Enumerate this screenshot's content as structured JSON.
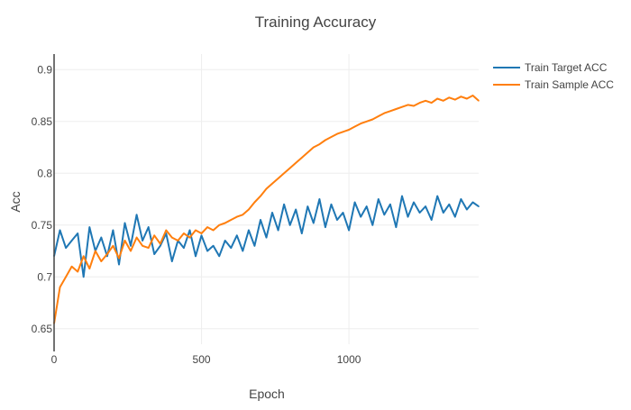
{
  "chart_data": {
    "type": "line",
    "title": "Training Accuracy",
    "xlabel": "Epoch",
    "ylabel": "Acc",
    "xlim": [
      0,
      1440
    ],
    "ylim": [
      0.635,
      0.915
    ],
    "x_ticks": [
      0,
      500,
      1000
    ],
    "x_tick_labels": [
      "0",
      "500",
      "1000"
    ],
    "y_ticks": [
      0.65,
      0.7,
      0.75,
      0.8,
      0.85,
      0.9
    ],
    "y_tick_labels": [
      "0.65",
      "0.7",
      "0.75",
      "0.8",
      "0.85",
      "0.9"
    ],
    "grid": true,
    "legend_position": "top-right outside plot",
    "series": [
      {
        "name": "Train Target ACC",
        "color": "#1f77b4",
        "x": [
          0,
          20,
          40,
          60,
          80,
          100,
          120,
          140,
          160,
          180,
          200,
          220,
          240,
          260,
          280,
          300,
          320,
          340,
          360,
          380,
          400,
          420,
          440,
          460,
          480,
          500,
          520,
          540,
          560,
          580,
          600,
          620,
          640,
          660,
          680,
          700,
          720,
          740,
          760,
          780,
          800,
          820,
          840,
          860,
          880,
          900,
          920,
          940,
          960,
          980,
          1000,
          1020,
          1040,
          1060,
          1080,
          1100,
          1120,
          1140,
          1160,
          1180,
          1200,
          1220,
          1240,
          1260,
          1280,
          1300,
          1320,
          1340,
          1360,
          1380,
          1400,
          1420,
          1440
        ],
        "values": [
          0.72,
          0.745,
          0.728,
          0.735,
          0.742,
          0.7,
          0.748,
          0.725,
          0.738,
          0.72,
          0.745,
          0.712,
          0.752,
          0.73,
          0.76,
          0.735,
          0.748,
          0.722,
          0.73,
          0.742,
          0.715,
          0.735,
          0.728,
          0.745,
          0.72,
          0.74,
          0.725,
          0.73,
          0.72,
          0.735,
          0.728,
          0.74,
          0.725,
          0.745,
          0.73,
          0.755,
          0.738,
          0.762,
          0.745,
          0.77,
          0.75,
          0.765,
          0.742,
          0.768,
          0.752,
          0.775,
          0.748,
          0.77,
          0.755,
          0.762,
          0.745,
          0.772,
          0.758,
          0.768,
          0.75,
          0.775,
          0.76,
          0.77,
          0.748,
          0.778,
          0.758,
          0.772,
          0.762,
          0.768,
          0.755,
          0.778,
          0.762,
          0.77,
          0.758,
          0.775,
          0.765,
          0.772,
          0.768
        ]
      },
      {
        "name": "Train Sample ACC",
        "color": "#ff7f0e",
        "x": [
          0,
          20,
          40,
          60,
          80,
          100,
          120,
          140,
          160,
          180,
          200,
          220,
          240,
          260,
          280,
          300,
          320,
          340,
          360,
          380,
          400,
          420,
          440,
          460,
          480,
          500,
          520,
          540,
          560,
          580,
          600,
          620,
          640,
          660,
          680,
          700,
          720,
          740,
          760,
          780,
          800,
          820,
          840,
          860,
          880,
          900,
          920,
          940,
          960,
          980,
          1000,
          1020,
          1040,
          1060,
          1080,
          1100,
          1120,
          1140,
          1160,
          1180,
          1200,
          1220,
          1240,
          1260,
          1280,
          1300,
          1320,
          1340,
          1360,
          1380,
          1400,
          1420,
          1440
        ],
        "values": [
          0.655,
          0.69,
          0.7,
          0.71,
          0.705,
          0.72,
          0.708,
          0.725,
          0.715,
          0.722,
          0.73,
          0.718,
          0.735,
          0.725,
          0.738,
          0.73,
          0.728,
          0.74,
          0.732,
          0.745,
          0.738,
          0.735,
          0.742,
          0.738,
          0.745,
          0.742,
          0.748,
          0.745,
          0.75,
          0.752,
          0.755,
          0.758,
          0.76,
          0.765,
          0.772,
          0.778,
          0.785,
          0.79,
          0.795,
          0.8,
          0.805,
          0.81,
          0.815,
          0.82,
          0.825,
          0.828,
          0.832,
          0.835,
          0.838,
          0.84,
          0.842,
          0.845,
          0.848,
          0.85,
          0.852,
          0.855,
          0.858,
          0.86,
          0.862,
          0.864,
          0.866,
          0.865,
          0.868,
          0.87,
          0.868,
          0.872,
          0.87,
          0.873,
          0.871,
          0.874,
          0.872,
          0.875,
          0.87
        ]
      }
    ]
  }
}
